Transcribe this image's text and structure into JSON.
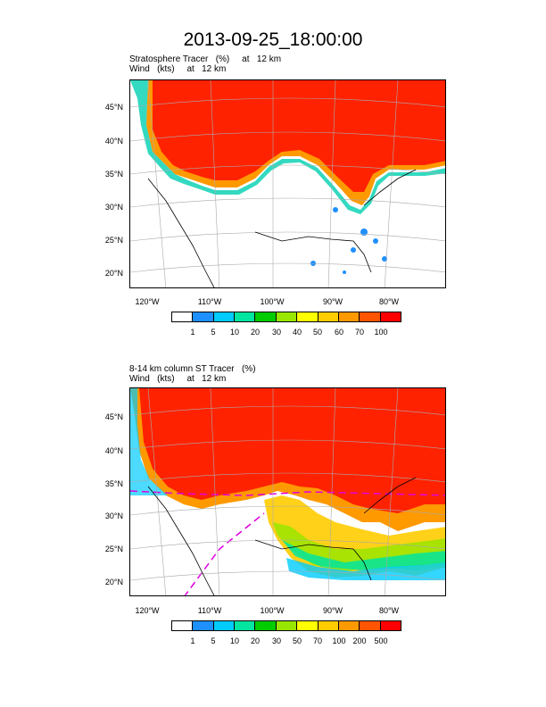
{
  "title": "2013-09-25_18:00:00",
  "panel1": {
    "line1": "Stratosphere Tracer   (%)     at   12 km",
    "line2": "Wind   (kts)     at   12 km",
    "colorbar_labels": [
      "1",
      "5",
      "10",
      "20",
      "30",
      "40",
      "50",
      "60",
      "70",
      "100"
    ]
  },
  "panel2": {
    "line1": "8-14 km column ST Tracer   (%)",
    "line2": "Wind   (kts)     at   12 km",
    "colorbar_labels": [
      "1",
      "5",
      "10",
      "20",
      "30",
      "50",
      "70",
      "100",
      "200",
      "500"
    ]
  },
  "lat_labels": [
    "45°N",
    "40°N",
    "35°N",
    "30°N",
    "25°N",
    "20°N"
  ],
  "lon_labels": [
    "120°W",
    "110°W",
    "100°W",
    "90°W",
    "80°W"
  ],
  "colors": [
    "#ffffff",
    "#1e90ff",
    "#00ccff",
    "#00e5a0",
    "#00cc00",
    "#99e600",
    "#ffff00",
    "#ffcc00",
    "#ff9900",
    "#ff5500",
    "#ff0000"
  ]
}
